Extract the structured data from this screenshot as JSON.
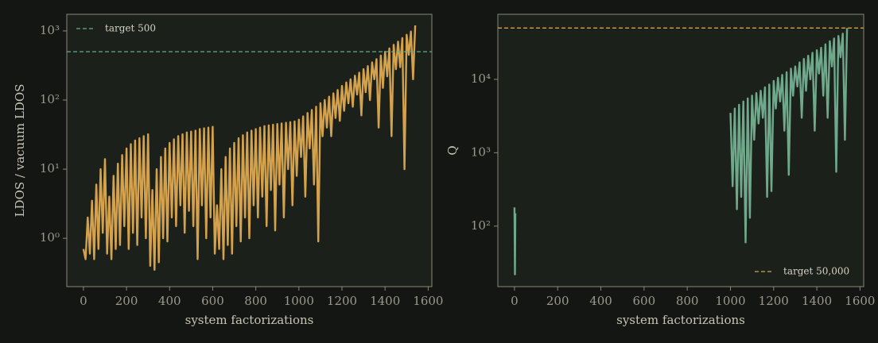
{
  "chart_data": [
    {
      "type": "line",
      "xlabel": "system factorizations",
      "ylabel": "LDOS / vacuum LDOS",
      "log_y": true,
      "xlim": [
        -77,
        1617
      ],
      "ylim": [
        0.2,
        1740
      ],
      "xticks": [
        0,
        200,
        400,
        600,
        800,
        1000,
        1200,
        1400,
        1600
      ],
      "yticks": [
        {
          "value": 1,
          "label": "10⁰"
        },
        {
          "value": 10,
          "label": "10¹"
        },
        {
          "value": 100,
          "label": "10²"
        },
        {
          "value": 1000,
          "label": "10³"
        }
      ],
      "legend": "upper left",
      "reference": {
        "name": "target 500",
        "value": 500,
        "color": "#6fa88a"
      },
      "series": [
        {
          "color": "#d4a24c",
          "x": [
            0,
            10,
            20,
            30,
            40,
            50,
            60,
            70,
            80,
            90,
            100,
            110,
            120,
            130,
            140,
            150,
            160,
            170,
            180,
            190,
            200,
            210,
            220,
            230,
            240,
            250,
            260,
            270,
            280,
            290,
            300,
            310,
            320,
            330,
            340,
            350,
            360,
            370,
            380,
            390,
            400,
            410,
            420,
            430,
            440,
            450,
            460,
            470,
            480,
            490,
            500,
            510,
            520,
            530,
            540,
            550,
            560,
            570,
            580,
            590,
            600,
            610,
            620,
            630,
            640,
            650,
            660,
            670,
            680,
            690,
            700,
            710,
            720,
            730,
            740,
            750,
            760,
            770,
            780,
            790,
            800,
            810,
            820,
            830,
            840,
            850,
            860,
            870,
            880,
            890,
            900,
            910,
            920,
            930,
            940,
            950,
            960,
            970,
            980,
            990,
            1000,
            1010,
            1020,
            1030,
            1040,
            1050,
            1060,
            1070,
            1080,
            1090,
            1100,
            1110,
            1120,
            1130,
            1140,
            1150,
            1160,
            1170,
            1180,
            1190,
            1200,
            1210,
            1220,
            1230,
            1240,
            1250,
            1260,
            1270,
            1280,
            1290,
            1300,
            1310,
            1320,
            1330,
            1340,
            1350,
            1360,
            1370,
            1380,
            1390,
            1400,
            1410,
            1420,
            1430,
            1440,
            1450,
            1460,
            1470,
            1480,
            1490,
            1500,
            1510,
            1520,
            1530,
            1540
          ],
          "values": [
            0.7,
            0.5,
            2.0,
            0.6,
            3.5,
            0.5,
            6,
            0.7,
            10,
            1.2,
            14,
            0.6,
            4,
            0.5,
            8,
            0.7,
            12,
            0.8,
            16,
            1.5,
            20,
            0.7,
            23,
            1.2,
            26,
            0.8,
            28,
            2,
            30,
            1,
            32,
            0.4,
            5,
            0.35,
            10,
            0.45,
            15,
            1,
            20,
            0.9,
            24,
            2,
            27,
            1.5,
            30,
            3,
            32,
            1.2,
            34,
            2.5,
            35,
            1.5,
            36,
            0.5,
            38,
            3,
            39,
            1,
            40,
            2,
            41,
            0.6,
            3,
            0.7,
            10,
            0.5,
            15,
            0.8,
            20,
            0.6,
            24,
            1.5,
            28,
            0.9,
            31,
            2,
            34,
            1,
            36,
            3,
            38,
            2,
            40,
            4,
            42,
            1.5,
            43,
            5,
            44,
            1.3,
            45,
            6,
            46,
            2,
            47,
            10,
            48,
            3,
            49,
            8,
            52,
            15,
            58,
            4,
            65,
            20,
            72,
            6,
            80,
            0.9,
            90,
            30,
            100,
            40,
            112,
            30,
            125,
            55,
            140,
            50,
            160,
            70,
            180,
            90,
            200,
            80,
            225,
            120,
            250,
            60,
            280,
            130,
            310,
            100,
            350,
            200,
            390,
            40,
            440,
            150,
            500,
            220,
            560,
            30,
            630,
            280,
            700,
            300,
            790,
            10,
            880,
            450,
            980,
            200,
            1200
          ]
        }
      ]
    },
    {
      "type": "line",
      "xlabel": "system factorizations",
      "ylabel": "Q",
      "log_y": true,
      "xlim": [
        -77,
        1617
      ],
      "ylim": [
        15,
        77000
      ],
      "xticks": [
        0,
        200,
        400,
        600,
        800,
        1000,
        1200,
        1400,
        1600
      ],
      "yticks": [
        {
          "value": 100,
          "label": "10²"
        },
        {
          "value": 1000,
          "label": "10³"
        },
        {
          "value": 10000,
          "label": "10⁴"
        }
      ],
      "legend": "lower right",
      "reference": {
        "name": "target 50,000",
        "value": 50000,
        "color": "#d4a24c"
      },
      "series": [
        {
          "color": "#6fa88a",
          "x": [
            0,
            2,
            4,
            500,
            1000,
            1010,
            1020,
            1030,
            1040,
            1050,
            1060,
            1070,
            1080,
            1090,
            1100,
            1110,
            1120,
            1130,
            1140,
            1150,
            1160,
            1170,
            1180,
            1190,
            1200,
            1210,
            1220,
            1230,
            1240,
            1250,
            1260,
            1270,
            1280,
            1290,
            1300,
            1310,
            1320,
            1330,
            1340,
            1350,
            1360,
            1370,
            1380,
            1390,
            1400,
            1410,
            1420,
            1430,
            1440,
            1450,
            1460,
            1470,
            1480,
            1490,
            1500,
            1510,
            1520,
            1530,
            1540
          ],
          "values": [
            180,
            22,
            150,
            null,
            3500,
            350,
            4000,
            170,
            4500,
            250,
            5000,
            60,
            5500,
            130,
            6000,
            1500,
            6500,
            2500,
            7000,
            3000,
            7800,
            250,
            8500,
            300,
            9500,
            4000,
            10500,
            5000,
            11500,
            2000,
            12500,
            500,
            14000,
            6000,
            15000,
            8000,
            17000,
            3000,
            19000,
            7000,
            21000,
            10000,
            23000,
            2000,
            25000,
            12000,
            27000,
            6000,
            30000,
            3000,
            33000,
            15000,
            36000,
            550,
            39000,
            20000,
            42000,
            1500,
            50000
          ]
        }
      ]
    }
  ]
}
